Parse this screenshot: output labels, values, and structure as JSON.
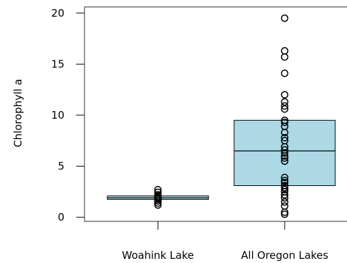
{
  "chart_data": {
    "type": "box",
    "title": "",
    "xlabel": "",
    "ylabel": "Chlorophyll a",
    "ylim": [
      -0.4,
      20.6
    ],
    "yticks": [
      0,
      5,
      10,
      15,
      20
    ],
    "grid": false,
    "legend": "none",
    "colors": {
      "box_fill": "#add8e6",
      "stroke": "#000000",
      "frame": "#555555"
    },
    "groups": [
      {
        "label": "Woahink Lake",
        "q1": 1.75,
        "median": 1.9,
        "q3": 2.1,
        "points": [
          2.7,
          2.45,
          2.2,
          2.05,
          1.95,
          1.85,
          1.75,
          1.6,
          1.4,
          1.2
        ]
      },
      {
        "label": "All Oregon Lakes",
        "q1": 3.1,
        "median": 6.5,
        "q3": 9.5,
        "points": [
          19.5,
          16.3,
          15.7,
          14.1,
          12.0,
          11.3,
          10.9,
          10.6,
          9.5,
          9.3,
          8.9,
          8.3,
          7.8,
          7.5,
          6.9,
          6.6,
          6.3,
          6.0,
          5.8,
          5.5,
          3.9,
          3.6,
          3.4,
          3.1,
          2.9,
          2.7,
          2.5,
          2.2,
          1.9,
          1.5,
          1.1,
          0.5,
          0.3
        ]
      }
    ]
  }
}
